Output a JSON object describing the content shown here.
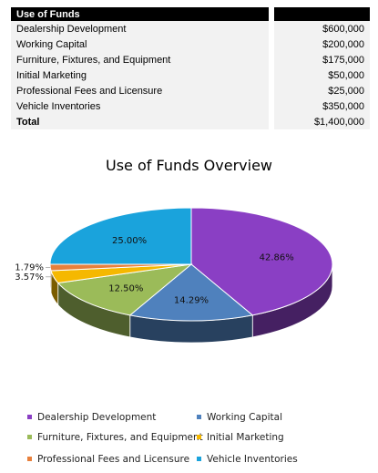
{
  "table": {
    "header": "Use of Funds",
    "rows": [
      {
        "label": "Dealership Development",
        "amount": "$600,000"
      },
      {
        "label": "Working Capital",
        "amount": "$200,000"
      },
      {
        "label": "Furniture, Fixtures, and Equipment",
        "amount": "$175,000"
      },
      {
        "label": "Initial Marketing",
        "amount": "$50,000"
      },
      {
        "label": "Professional Fees and Licensure",
        "amount": "$25,000"
      },
      {
        "label": "Vehicle Inventories",
        "amount": "$350,000"
      }
    ],
    "total_label": "Total",
    "total_amount": "$1,400,000"
  },
  "chart_data": {
    "type": "pie",
    "title": "Use of Funds Overview",
    "categories": [
      "Dealership Development",
      "Working Capital",
      "Furniture, Fixtures, and Equipment",
      "Initial Marketing",
      "Professional Fees and Licensure",
      "Vehicle Inventories"
    ],
    "values": [
      600000,
      200000,
      175000,
      50000,
      25000,
      350000
    ],
    "percent_labels": [
      "42.86%",
      "14.29%",
      "12.50%",
      "3.57%",
      "1.79%",
      "25.00%"
    ],
    "colors": [
      "#8a3fc4",
      "#4f81bd",
      "#9bbb59",
      "#f5b800",
      "#e8803c",
      "#1aa3dc"
    ],
    "legend_position": "bottom",
    "style": "3d"
  }
}
